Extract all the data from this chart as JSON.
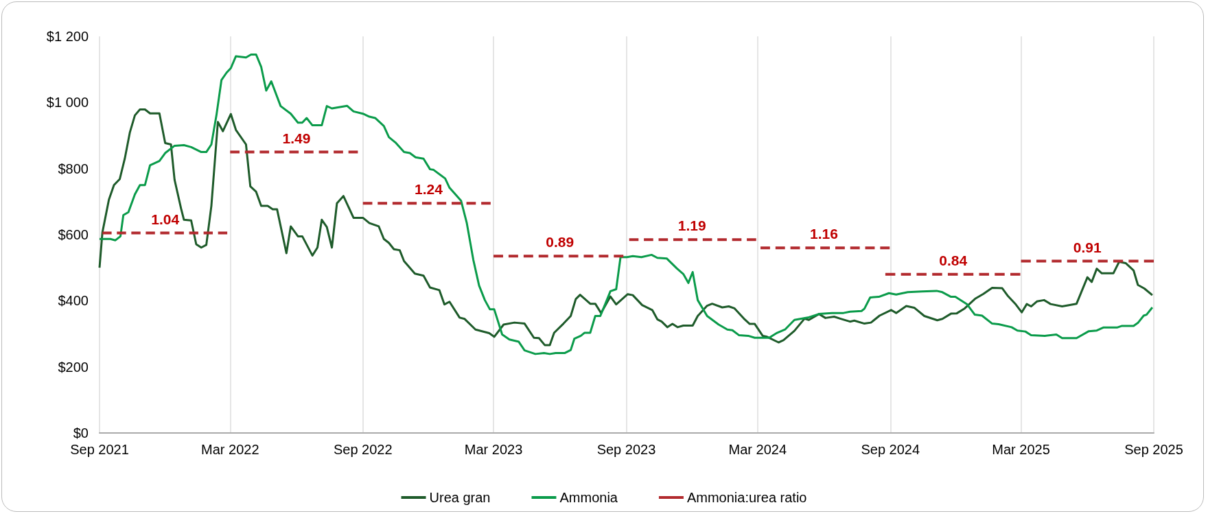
{
  "chart_data": {
    "type": "line",
    "ylim": [
      0,
      1200
    ],
    "yticks": [
      {
        "value": 0,
        "label": "$0"
      },
      {
        "value": 200,
        "label": "$200"
      },
      {
        "value": 400,
        "label": "$400"
      },
      {
        "value": 600,
        "label": "$600"
      },
      {
        "value": 800,
        "label": "$800"
      },
      {
        "value": 1000,
        "label": "$1 000"
      },
      {
        "value": 1200,
        "label": "$1 200"
      }
    ],
    "xlim": [
      "2021-09-01",
      "2025-09-01"
    ],
    "xticks": [
      {
        "value": "2021-09-01",
        "label": "Sep 2021"
      },
      {
        "value": "2022-03-01",
        "label": "Mar 2022"
      },
      {
        "value": "2022-09-01",
        "label": "Sep 2022"
      },
      {
        "value": "2023-03-01",
        "label": "Mar 2023"
      },
      {
        "value": "2023-09-01",
        "label": "Sep 2023"
      },
      {
        "value": "2024-03-01",
        "label": "Mar 2024"
      },
      {
        "value": "2024-09-01",
        "label": "Sep 2024"
      },
      {
        "value": "2025-03-01",
        "label": "Mar 2025"
      },
      {
        "value": "2025-09-01",
        "label": "Sep 2025"
      }
    ],
    "grid": "x",
    "legend": "bottom",
    "marker": "none",
    "series": [
      {
        "name": "Urea gran",
        "color": "#1e5b2a",
        "line_style": "solid",
        "x": [
          "2021-09-01",
          "2021-09-05",
          "2021-09-14",
          "2021-09-21",
          "2021-09-29",
          "2021-10-06",
          "2021-10-13",
          "2021-10-20",
          "2021-10-27",
          "2021-11-03",
          "2021-11-10",
          "2021-11-23",
          "2021-12-01",
          "2021-12-09",
          "2021-12-14",
          "2021-12-23",
          "2021-12-27",
          "2022-01-06",
          "2022-01-13",
          "2022-01-20",
          "2022-01-27",
          "2022-02-03",
          "2022-02-12",
          "2022-02-19",
          "2022-03-02",
          "2022-03-09",
          "2022-03-23",
          "2022-03-29",
          "2022-04-06",
          "2022-04-13",
          "2022-04-22",
          "2022-04-29",
          "2022-05-05",
          "2022-05-18",
          "2022-05-24",
          "2022-06-03",
          "2022-06-09",
          "2022-06-23",
          "2022-06-30",
          "2022-07-06",
          "2022-07-13",
          "2022-07-20",
          "2022-07-27",
          "2022-08-05",
          "2022-08-19",
          "2022-09-01",
          "2022-09-10",
          "2022-09-23",
          "2022-09-30",
          "2022-10-07",
          "2022-10-14",
          "2022-10-22",
          "2022-10-28",
          "2022-11-12",
          "2022-11-24",
          "2022-12-03",
          "2022-12-16",
          "2022-12-23",
          "2022-12-30",
          "2023-01-13",
          "2023-01-20",
          "2023-02-04",
          "2023-02-23",
          "2023-03-02",
          "2023-03-15",
          "2023-03-30",
          "2023-04-13",
          "2023-04-26",
          "2023-05-03",
          "2023-05-11",
          "2023-05-18",
          "2023-05-24",
          "2023-06-06",
          "2023-06-16",
          "2023-06-23",
          "2023-06-29",
          "2023-07-13",
          "2023-07-20",
          "2023-07-28",
          "2023-08-10",
          "2023-08-18",
          "2023-09-03",
          "2023-09-10",
          "2023-09-23",
          "2023-10-07",
          "2023-10-14",
          "2023-10-20",
          "2023-10-28",
          "2023-11-04",
          "2023-11-11",
          "2023-11-19",
          "2023-12-02",
          "2023-12-09",
          "2023-12-22",
          "2023-12-29",
          "2024-01-12",
          "2024-01-21",
          "2024-01-29",
          "2024-02-11",
          "2024-02-19",
          "2024-02-26",
          "2024-03-08",
          "2024-03-14",
          "2024-03-30",
          "2024-04-06",
          "2024-04-21",
          "2024-05-05",
          "2024-05-11",
          "2024-05-25",
          "2024-06-03",
          "2024-06-15",
          "2024-06-25",
          "2024-07-07",
          "2024-07-13",
          "2024-07-27",
          "2024-08-05",
          "2024-08-17",
          "2024-09-02",
          "2024-09-09",
          "2024-09-23",
          "2024-10-04",
          "2024-10-18",
          "2024-11-05",
          "2024-11-12",
          "2024-11-24",
          "2024-12-02",
          "2024-12-13",
          "2024-12-28",
          "2025-01-08",
          "2025-01-20",
          "2025-02-03",
          "2025-02-11",
          "2025-02-21",
          "2025-03-02",
          "2025-03-09",
          "2025-03-15",
          "2025-03-23",
          "2025-04-02",
          "2025-04-11",
          "2025-04-27",
          "2025-05-17",
          "2025-06-01",
          "2025-06-07",
          "2025-06-14",
          "2025-06-21",
          "2025-07-07",
          "2025-07-15",
          "2025-07-24",
          "2025-08-04",
          "2025-08-10",
          "2025-08-19",
          "2025-08-30"
        ],
        "values": [
          500,
          607,
          706,
          750,
          768,
          830,
          909,
          961,
          979,
          979,
          967,
          967,
          877,
          873,
          766,
          679,
          645,
          643,
          571,
          561,
          569,
          687,
          941,
          913,
          965,
          917,
          873,
          746,
          730,
          687,
          687,
          677,
          677,
          544,
          625,
          595,
          595,
          537,
          561,
          645,
          623,
          561,
          695,
          717,
          651,
          651,
          635,
          625,
          587,
          575,
          556,
          553,
          520,
          482,
          476,
          440,
          432,
          389,
          397,
          349,
          345,
          313,
          302,
          291,
          328,
          334,
          331,
          288,
          287,
          266,
          266,
          303,
          331,
          354,
          405,
          418,
          391,
          391,
          363,
          413,
          389,
          420,
          417,
          387,
          372,
          344,
          337,
          320,
          330,
          320,
          325,
          325,
          354,
          385,
          391,
          380,
          383,
          377,
          346,
          330,
          330,
          294,
          291,
          274,
          281,
          309,
          346,
          342,
          360,
          348,
          352,
          345,
          337,
          340,
          331,
          334,
          355,
          372,
          363,
          384,
          379,
          354,
          341,
          345,
          361,
          362,
          377,
          407,
          421,
          439,
          438,
          414,
          391,
          365,
          390,
          383,
          398,
          402,
          390,
          383,
          391,
          471,
          457,
          497,
          483,
          483,
          518,
          514,
          492,
          448,
          437,
          417
        ]
      },
      {
        "name": "Ammonia",
        "color": "#0a9b4a",
        "line_style": "solid",
        "x": [
          "2021-09-01",
          "2021-09-16",
          "2021-09-23",
          "2021-09-30",
          "2021-10-04",
          "2021-10-11",
          "2021-10-20",
          "2021-10-27",
          "2021-11-03",
          "2021-11-10",
          "2021-11-23",
          "2021-12-01",
          "2021-12-14",
          "2021-12-27",
          "2022-01-06",
          "2022-01-20",
          "2022-01-27",
          "2022-02-03",
          "2022-02-10",
          "2022-02-17",
          "2022-02-24",
          "2022-03-02",
          "2022-03-09",
          "2022-03-23",
          "2022-03-30",
          "2022-04-06",
          "2022-04-13",
          "2022-04-20",
          "2022-04-27",
          "2022-05-10",
          "2022-05-24",
          "2022-06-03",
          "2022-06-09",
          "2022-06-15",
          "2022-06-23",
          "2022-07-06",
          "2022-07-13",
          "2022-07-20",
          "2022-08-10",
          "2022-08-19",
          "2022-09-01",
          "2022-09-10",
          "2022-09-18",
          "2022-09-30",
          "2022-10-07",
          "2022-10-16",
          "2022-10-28",
          "2022-11-05",
          "2022-11-13",
          "2022-11-24",
          "2022-12-03",
          "2022-12-08",
          "2022-12-24",
          "2022-12-30",
          "2023-01-15",
          "2023-01-23",
          "2023-02-01",
          "2023-02-09",
          "2023-02-17",
          "2023-02-24",
          "2023-03-02",
          "2023-03-13",
          "2023-03-23",
          "2023-04-05",
          "2023-04-13",
          "2023-04-28",
          "2023-05-10",
          "2023-05-18",
          "2023-05-26",
          "2023-06-08",
          "2023-06-16",
          "2023-06-21",
          "2023-06-30",
          "2023-07-05",
          "2023-07-13",
          "2023-07-20",
          "2023-07-27",
          "2023-08-03",
          "2023-08-10",
          "2023-08-18",
          "2023-08-24",
          "2023-09-02",
          "2023-09-10",
          "2023-09-22",
          "2023-10-06",
          "2023-10-14",
          "2023-10-27",
          "2023-11-10",
          "2023-11-19",
          "2023-11-26",
          "2023-12-02",
          "2023-12-09",
          "2023-12-22",
          "2024-01-07",
          "2024-01-19",
          "2024-01-26",
          "2024-02-04",
          "2024-02-17",
          "2024-02-26",
          "2024-03-17",
          "2024-03-28",
          "2024-04-08",
          "2024-04-21",
          "2024-05-11",
          "2024-05-25",
          "2024-06-12",
          "2024-06-28",
          "2024-07-07",
          "2024-07-23",
          "2024-07-27",
          "2024-08-04",
          "2024-08-16",
          "2024-08-30",
          "2024-09-09",
          "2024-09-25",
          "2024-10-15",
          "2024-11-04",
          "2024-11-12",
          "2024-11-24",
          "2024-11-30",
          "2024-12-16",
          "2024-12-27",
          "2025-01-06",
          "2025-01-20",
          "2025-01-29",
          "2025-02-16",
          "2025-02-24",
          "2025-03-07",
          "2025-03-15",
          "2025-04-03",
          "2025-04-19",
          "2025-04-27",
          "2025-05-17",
          "2025-06-03",
          "2025-06-14",
          "2025-06-23",
          "2025-07-12",
          "2025-07-19",
          "2025-08-04",
          "2025-08-10",
          "2025-08-18",
          "2025-08-22",
          "2025-08-30"
        ],
        "values": [
          587,
          587,
          583,
          595,
          659,
          668,
          722,
          750,
          750,
          810,
          823,
          847,
          869,
          871,
          865,
          850,
          850,
          873,
          961,
          1068,
          1090,
          1104,
          1140,
          1136,
          1145,
          1145,
          1108,
          1036,
          1064,
          989,
          966,
          939,
          939,
          953,
          931,
          931,
          989,
          982,
          990,
          973,
          966,
          957,
          953,
          929,
          895,
          879,
          850,
          847,
          834,
          830,
          798,
          796,
          770,
          742,
          703,
          635,
          524,
          446,
          402,
          374,
          374,
          298,
          283,
          276,
          250,
          239,
          242,
          239,
          242,
          242,
          251,
          285,
          294,
          303,
          303,
          354,
          354,
          391,
          429,
          435,
          532,
          532,
          535,
          532,
          539,
          530,
          528,
          498,
          481,
          454,
          487,
          402,
          354,
          328,
          313,
          311,
          296,
          294,
          288,
          288,
          303,
          313,
          342,
          350,
          360,
          363,
          363,
          367,
          369,
          376,
          410,
          412,
          423,
          419,
          426,
          428,
          430,
          426,
          412,
          412,
          390,
          358,
          355,
          331,
          329,
          320,
          310,
          307,
          296,
          294,
          298,
          287,
          287,
          308,
          310,
          319,
          319,
          324,
          324,
          333,
          355,
          358,
          380
        ]
      },
      {
        "name": "Ammonia:urea ratio",
        "color": "#b22a2e",
        "line_style": "dashed",
        "x": [
          "2021-09-05",
          "2022-02-25"
        ],
        "values": [
          605,
          605
        ]
      },
      {
        "color": "#b22a2e",
        "line_style": "dashed",
        "x": [
          "2022-03-01",
          "2022-08-25"
        ],
        "values": [
          850,
          850
        ]
      },
      {
        "color": "#b22a2e",
        "line_style": "dashed",
        "x": [
          "2022-09-01",
          "2023-02-25"
        ],
        "values": [
          695,
          695
        ]
      },
      {
        "color": "#b22a2e",
        "line_style": "dashed",
        "x": [
          "2023-03-01",
          "2023-08-28"
        ],
        "values": [
          535,
          535
        ]
      },
      {
        "color": "#b22a2e",
        "line_style": "dashed",
        "x": [
          "2023-09-05",
          "2024-02-28"
        ],
        "values": [
          585,
          585
        ]
      },
      {
        "color": "#b22a2e",
        "line_style": "dashed",
        "x": [
          "2024-03-05",
          "2024-08-31"
        ],
        "values": [
          560,
          560
        ]
      },
      {
        "color": "#b22a2e",
        "line_style": "dashed",
        "x": [
          "2024-08-25",
          "2025-02-28"
        ],
        "values": [
          480,
          480
        ]
      },
      {
        "color": "#b22a2e",
        "line_style": "dashed",
        "x": [
          "2025-03-01",
          "2025-09-01"
        ],
        "values": [
          520,
          520
        ]
      }
    ],
    "annotations": [
      {
        "text": "1.04",
        "x": "2021-12-01",
        "y": 605
      },
      {
        "text": "1.49",
        "x": "2022-06-01",
        "y": 850
      },
      {
        "text": "1.24",
        "x": "2022-12-01",
        "y": 695
      },
      {
        "text": "0.89",
        "x": "2023-06-01",
        "y": 535
      },
      {
        "text": "1.19",
        "x": "2023-12-01",
        "y": 585
      },
      {
        "text": "1.16",
        "x": "2024-06-01",
        "y": 560
      },
      {
        "text": "0.84",
        "x": "2024-11-27",
        "y": 480
      },
      {
        "text": "0.91",
        "x": "2025-06-01",
        "y": 520
      }
    ]
  }
}
